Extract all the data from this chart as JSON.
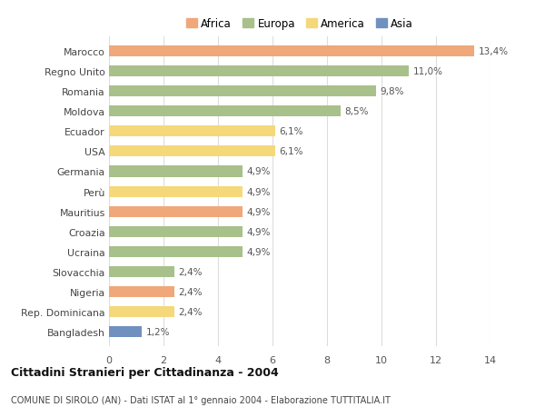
{
  "title": "Cittadini Stranieri per Cittadinanza - 2004",
  "subtitle": "COMUNE DI SIROLO (AN) - Dati ISTAT al 1° gennaio 2004 - Elaborazione TUTTITALIA.IT",
  "categories": [
    "Marocco",
    "Regno Unito",
    "Romania",
    "Moldova",
    "Ecuador",
    "USA",
    "Germania",
    "Perù",
    "Mauritius",
    "Croazia",
    "Ucraina",
    "Slovacchia",
    "Nigeria",
    "Rep. Dominicana",
    "Bangladesh"
  ],
  "values": [
    13.4,
    11.0,
    9.8,
    8.5,
    6.1,
    6.1,
    4.9,
    4.9,
    4.9,
    4.9,
    4.9,
    2.4,
    2.4,
    2.4,
    1.2
  ],
  "labels": [
    "13,4%",
    "11,0%",
    "9,8%",
    "8,5%",
    "6,1%",
    "6,1%",
    "4,9%",
    "4,9%",
    "4,9%",
    "4,9%",
    "4,9%",
    "2,4%",
    "2,4%",
    "2,4%",
    "1,2%"
  ],
  "colors": [
    "#F0A87A",
    "#A8C08A",
    "#A8C08A",
    "#A8C08A",
    "#F5D87A",
    "#F5D87A",
    "#A8C08A",
    "#F5D87A",
    "#F0A87A",
    "#A8C08A",
    "#A8C08A",
    "#A8C08A",
    "#F0A87A",
    "#F5D87A",
    "#7090C0"
  ],
  "legend": [
    {
      "label": "Africa",
      "color": "#F0A87A"
    },
    {
      "label": "Europa",
      "color": "#A8C08A"
    },
    {
      "label": "America",
      "color": "#F5D87A"
    },
    {
      "label": "Asia",
      "color": "#7090C0"
    }
  ],
  "xlim": [
    0,
    14
  ],
  "xticks": [
    0,
    2,
    4,
    6,
    8,
    10,
    12,
    14
  ],
  "background_color": "#FFFFFF",
  "grid_color": "#DDDDDD",
  "bar_height": 0.55
}
